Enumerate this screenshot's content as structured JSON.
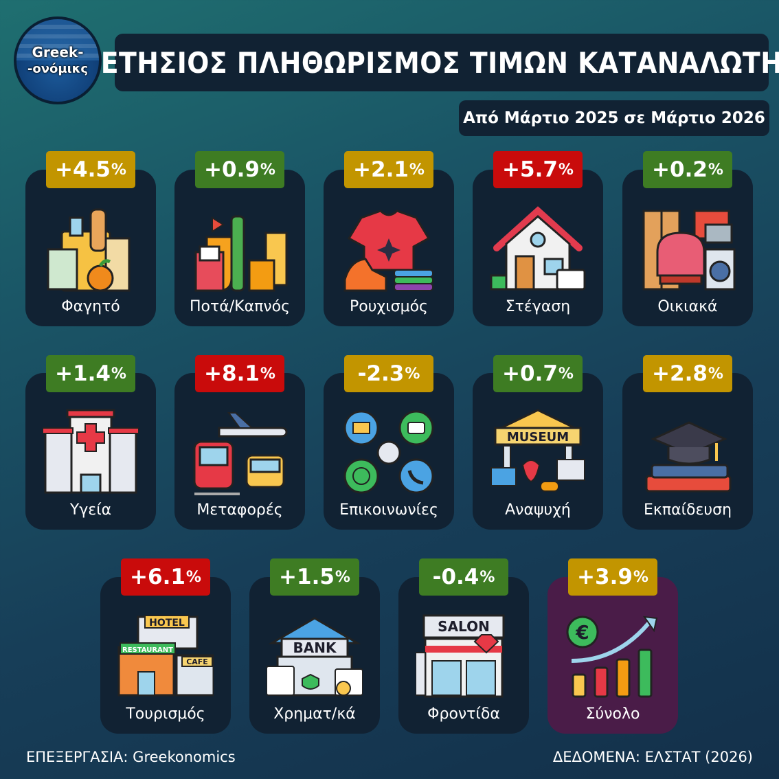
{
  "logo": {
    "line1": "Greek-",
    "line2": "-ονόμικς"
  },
  "title": "ΕΤΗΣΙΟΣ ΠΛΗΘΩΡΙΣΜΟΣ ΤΙΜΩΝ ΚΑΤΑΝΑΛΩΤΗ",
  "subtitle": "Από Μάρτιο 2025 σε Μάρτιο 2026",
  "colors": {
    "green": "#3e7c23",
    "gold": "#c29500",
    "red": "#c90b0b"
  },
  "chart_data": {
    "type": "table",
    "title": "ΕΤΗΣΙΟΣ ΠΛΗΘΩΡΙΣΜΟΣ ΤΙΜΩΝ ΚΑΤΑΝΑΛΩΤΗ",
    "subtitle": "Από Μάρτιο 2025 σε Μάρτιο 2026",
    "unit": "%",
    "items": [
      {
        "label": "Φαγητό",
        "value": 4.5,
        "display": "+4.5",
        "color": "gold",
        "icon": "groceries-icon"
      },
      {
        "label": "Ποτά/Καπνός",
        "value": 0.9,
        "display": "+0.9",
        "color": "green",
        "icon": "drinks-tobacco-icon"
      },
      {
        "label": "Ρουχισμός",
        "value": 2.1,
        "display": "+2.1",
        "color": "gold",
        "icon": "clothing-icon"
      },
      {
        "label": "Στέγαση",
        "value": 5.7,
        "display": "+5.7",
        "color": "red",
        "icon": "house-icon"
      },
      {
        "label": "Οικιακά",
        "value": 0.2,
        "display": "+0.2",
        "color": "green",
        "icon": "household-icon"
      },
      {
        "label": "Υγεία",
        "value": 1.4,
        "display": "+1.4",
        "color": "green",
        "icon": "hospital-icon"
      },
      {
        "label": "Μεταφορές",
        "value": 8.1,
        "display": "+8.1",
        "color": "red",
        "icon": "transport-icon"
      },
      {
        "label": "Επικοινωνίες",
        "value": -2.3,
        "display": "-2.3",
        "color": "gold",
        "icon": "communication-icon"
      },
      {
        "label": "Αναψυχή",
        "value": 0.7,
        "display": "+0.7",
        "color": "green",
        "icon": "museum-icon",
        "icon_text": "MUSEUM"
      },
      {
        "label": "Εκπαίδευση",
        "value": 2.8,
        "display": "+2.8",
        "color": "gold",
        "icon": "education-icon"
      },
      {
        "label": "Τουρισμός",
        "value": 6.1,
        "display": "+6.1",
        "color": "red",
        "icon": "hotel-icon",
        "icon_text": [
          "HOTEL",
          "RESTAURANT",
          "CAFE"
        ]
      },
      {
        "label": "Χρηματ/κά",
        "value": 1.5,
        "display": "+1.5",
        "color": "green",
        "icon": "bank-icon",
        "icon_text": "BANK"
      },
      {
        "label": "Φροντίδα",
        "value": -0.4,
        "display": "-0.4",
        "color": "green",
        "icon": "salon-icon",
        "icon_text": "SALON"
      },
      {
        "label": "Σύνολο",
        "value": 3.9,
        "display": "+3.9",
        "color": "gold",
        "icon": "total-chart-icon",
        "total": true
      }
    ]
  },
  "footer": {
    "left": "ΕΠΕΞΕΡΓΑΣΙΑ: Greekonomics",
    "right": "ΔΕΔΟΜΕΝΑ: ΕΛΣΤΑΤ (2026)"
  }
}
